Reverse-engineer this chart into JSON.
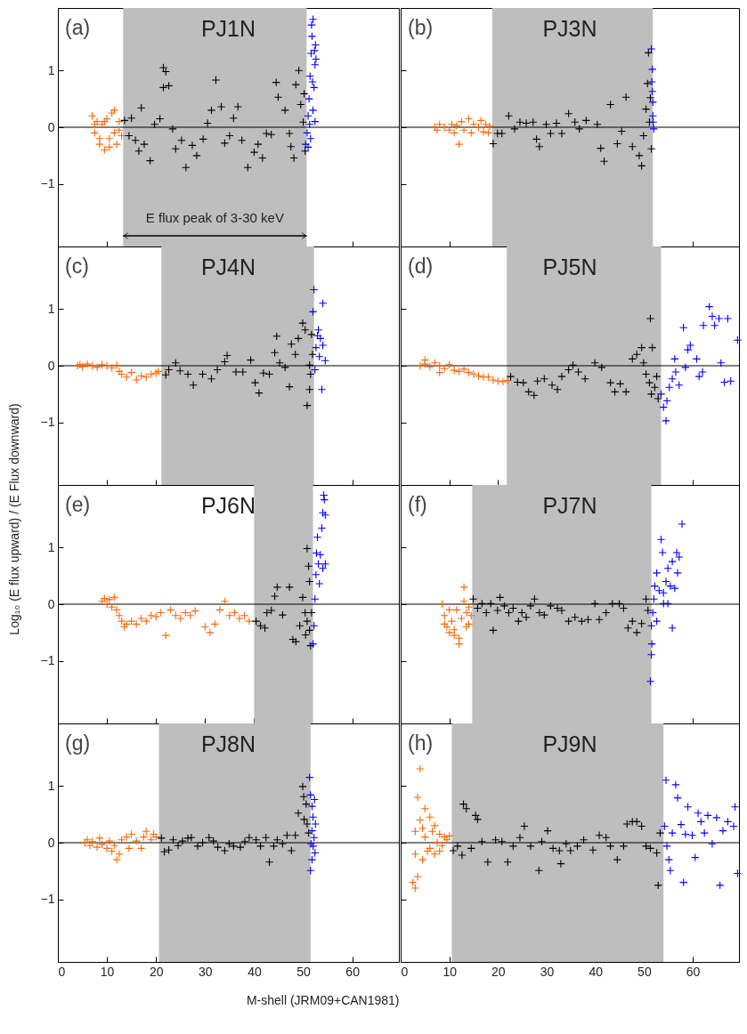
{
  "chart_data": [
    {
      "type": "scatter",
      "title": "PJ1N",
      "annotations": [
        "(a)",
        "E flux peak of 3-30 keV"
      ],
      "xlim": [
        0,
        69.5
      ],
      "ylim": [
        -2.1,
        2.1
      ],
      "xticks": [
        0,
        10,
        20,
        30,
        40,
        50,
        60
      ],
      "yticks": [
        -1,
        0,
        1
      ],
      "tick_labels": "y",
      "marker": "cross",
      "bands": [
        {
          "axis": "x",
          "from": 13.3,
          "to": 50.7,
          "color": "#bebebe"
        }
      ],
      "ref_lines": [
        {
          "axis": "y",
          "value": 0,
          "color": "#000000"
        }
      ],
      "series": [
        {
          "color": "#ff6600",
          "x": [
            7,
            7.5,
            8,
            8.5,
            9,
            9.5,
            10,
            10.5,
            11,
            11.5,
            12,
            12.5,
            13,
            7.5,
            8.5,
            9.5,
            10.5,
            11.5,
            12.5
          ],
          "values": [
            0.2,
            -0.1,
            0.1,
            -0.3,
            0.05,
            -0.4,
            0.15,
            -0.2,
            0.25,
            -0.1,
            -0.3,
            0.1,
            -0.15,
            0.05,
            -0.2,
            0.1,
            -0.35,
            0.3,
            -0.05
          ]
        },
        {
          "color": "#000000",
          "x": [
            13.6,
            14.5,
            15,
            15.8,
            16.5,
            17,
            17.6,
            18.8,
            19.7,
            20.8,
            21.5,
            22,
            21.5,
            22.6,
            23.4,
            24,
            25.2,
            26.1,
            27.4,
            28.3,
            29.6,
            30.5,
            31.3,
            32.2,
            33.3,
            34,
            35,
            35.8,
            36.7,
            37.5,
            38.7,
            40,
            40.8,
            41.7,
            42.5,
            43.5,
            44.5,
            44.9,
            46.3,
            47.2,
            47.5,
            48.1,
            48.5,
            49.1,
            49.5,
            50,
            50.4,
            50.2
          ],
          "values": [
            0.12,
            -0.15,
            0.16,
            -0.23,
            -0.42,
            0.34,
            -0.3,
            -0.59,
            0.05,
            0.15,
            1.05,
            0.98,
            0.7,
            0.73,
            -0.03,
            -0.38,
            -0.23,
            -0.71,
            -0.32,
            -0.5,
            -0.21,
            0.07,
            0.3,
            0.83,
            0.36,
            -0.28,
            -0.15,
            0.16,
            0.36,
            -0.23,
            -0.71,
            -0.44,
            -0.3,
            -0.54,
            -0.11,
            -0.13,
            0.79,
            0.53,
            0.3,
            -0.11,
            -0.34,
            -0.54,
            0.75,
            1,
            0.4,
            0.09,
            -0.42,
            0.59
          ]
        },
        {
          "color": "#0000ff",
          "x": [
            50.5,
            50.8,
            51,
            51.2,
            51.4,
            51.6,
            51.8,
            52,
            51.5,
            52,
            52.2,
            52.4,
            52.5,
            52.6,
            51.3,
            51.9,
            52.3,
            51,
            52.4,
            51.7
          ],
          "values": [
            -0.3,
            -0.1,
            0.2,
            0.5,
            0.9,
            1.3,
            1.6,
            1.9,
            -0.2,
            0.3,
            0.7,
            1.1,
            1.45,
            1.2,
            0.05,
            0.8,
            1.35,
            -0.35,
            0.1,
            1.8
          ]
        }
      ]
    },
    {
      "type": "scatter",
      "title": "PJ3N",
      "annotations": [
        "(b)"
      ],
      "xlim": [
        0,
        69.5
      ],
      "ylim": [
        -2.1,
        2.1
      ],
      "xticks": [
        0,
        10,
        20,
        30,
        40,
        50,
        60
      ],
      "yticks": [
        -1,
        0,
        1
      ],
      "tick_labels": false,
      "marker": "cross",
      "bands": [
        {
          "axis": "x",
          "from": 18.8,
          "to": 51.8,
          "color": "#bebebe"
        }
      ],
      "ref_lines": [
        {
          "axis": "y",
          "value": 0,
          "color": "#000000"
        }
      ],
      "series": [
        {
          "color": "#ff6600",
          "x": [
            7,
            7.5,
            8,
            9,
            10,
            10.5,
            11,
            11.5,
            12,
            12.5,
            13,
            14,
            14.5,
            15,
            16,
            16.5,
            17,
            17.5,
            18,
            18.3
          ],
          "values": [
            0,
            -0.05,
            0.05,
            0,
            -0.05,
            0.05,
            -0.1,
            0.03,
            -0.3,
            0.1,
            -0.05,
            0.15,
            -0.1,
            0.05,
            0,
            0.12,
            -0.08,
            0.05,
            -0.1,
            0.02
          ]
        },
        {
          "color": "#000000",
          "x": [
            19,
            19.9,
            20.8,
            22.2,
            23.4,
            24.5,
            25.8,
            27.2,
            27.9,
            28.5,
            29.9,
            30.8,
            32,
            33.1,
            34.5,
            35.8,
            36.7,
            38.1,
            40.4,
            41.1,
            41.8,
            43.1,
            44.5,
            45.4,
            46.3,
            47.6,
            49,
            49.5,
            49.9,
            50.4,
            50.7,
            50.9,
            51.1,
            51.5,
            51.3
          ],
          "values": [
            -0.29,
            -0.11,
            -0.11,
            0.2,
            -0.03,
            0.09,
            0.07,
            0.09,
            -0.21,
            -0.34,
            0.05,
            -0.11,
            0.07,
            -0.11,
            0.24,
            0.09,
            -0.03,
            0.12,
            0.05,
            -0.37,
            -0.6,
            0.4,
            -0.29,
            -0.07,
            0.53,
            -0.34,
            -0.5,
            -0.68,
            -0.15,
            0.32,
            0.77,
            1.31,
            0.09,
            -0.38,
            0.52
          ]
        },
        {
          "color": "#0000ff",
          "x": [
            51.5,
            51.7,
            51.7,
            51.8,
            51.9,
            51.6,
            51.8,
            52
          ],
          "values": [
            1.38,
            1.02,
            0.63,
            0.2,
            0.09,
            0.8,
            0.44,
            -0.03
          ]
        }
      ]
    },
    {
      "type": "scatter",
      "title": "PJ4N",
      "annotations": [
        "(c)"
      ],
      "xlim": [
        0,
        69.5
      ],
      "ylim": [
        -2.1,
        2.1
      ],
      "xticks": [
        0,
        10,
        20,
        30,
        40,
        50,
        60
      ],
      "yticks": [
        -1,
        0,
        1
      ],
      "tick_labels": "y",
      "marker": "cross",
      "bands": [
        {
          "axis": "x",
          "from": 21.1,
          "to": 52.2,
          "color": "#bebebe"
        }
      ],
      "ref_lines": [
        {
          "axis": "y",
          "value": 0,
          "color": "#000000"
        }
      ],
      "series": [
        {
          "color": "#ff6600",
          "x": [
            4,
            4.5,
            5,
            6,
            7,
            8,
            9,
            10,
            11,
            12,
            12.5,
            13,
            14,
            15,
            16,
            17,
            18,
            19,
            20,
            20.5
          ],
          "values": [
            0,
            0.02,
            -0.02,
            0.03,
            0,
            -0.03,
            0.02,
            0,
            -0.04,
            0.01,
            -0.1,
            -0.15,
            -0.2,
            -0.12,
            -0.25,
            -0.18,
            -0.2,
            -0.15,
            -0.13,
            -0.1
          ]
        },
        {
          "color": "#000000",
          "x": [
            22,
            22.6,
            24,
            24.9,
            26.5,
            27.6,
            29.5,
            31.3,
            32.5,
            34,
            34.5,
            36.3,
            37.7,
            39.3,
            40.2,
            41,
            41.9,
            43.1,
            44.2,
            44.6,
            45.2,
            46.3,
            47.2,
            47.6,
            48.4,
            49,
            49.9,
            50.4,
            50.8,
            51.3,
            51.5,
            51.7,
            51.9,
            51.3
          ],
          "values": [
            -0.16,
            -0.07,
            0.05,
            -0.09,
            -0.15,
            -0.34,
            -0.15,
            -0.23,
            -0.07,
            0.07,
            0.18,
            -0.11,
            -0.11,
            0.1,
            -0.3,
            -0.48,
            -0.13,
            -0.15,
            0.23,
            0.52,
            0.05,
            -0.03,
            -0.37,
            0.38,
            0.2,
            0.48,
            0.75,
            0.63,
            -0.7,
            -0.42,
            -0.15,
            0.55,
            0.2,
            0.01
          ]
        },
        {
          "color": "#0000ff",
          "x": [
            52.2,
            52,
            54,
            53.1,
            53.5,
            52.6,
            54,
            54.5,
            53.3,
            53.8,
            52.4,
            52.9
          ],
          "values": [
            1.34,
            0.95,
            1.1,
            0.63,
            0.48,
            0.32,
            0.36,
            0.09,
            0.16,
            -0.42,
            -0.07,
            0.53
          ]
        }
      ]
    },
    {
      "type": "scatter",
      "title": "PJ5N",
      "annotations": [
        "(d)"
      ],
      "xlim": [
        0,
        69.5
      ],
      "ylim": [
        -2.1,
        2.1
      ],
      "xticks": [
        0,
        10,
        20,
        30,
        40,
        50,
        60
      ],
      "yticks": [
        -1,
        0,
        1
      ],
      "tick_labels": false,
      "marker": "cross",
      "bands": [
        {
          "axis": "x",
          "from": 21.8,
          "to": 53.5,
          "color": "#bebebe"
        }
      ],
      "ref_lines": [
        {
          "axis": "y",
          "value": 0,
          "color": "#000000"
        }
      ],
      "series": [
        {
          "color": "#ff6600",
          "x": [
            4,
            5,
            6,
            7,
            8,
            9,
            10,
            11,
            12,
            13,
            14,
            15,
            16,
            17,
            18,
            19,
            20,
            21,
            22,
            5,
            8
          ],
          "values": [
            0,
            0.03,
            -0.02,
            0.05,
            0,
            -0.05,
            0.02,
            -0.08,
            -0.1,
            -0.06,
            -0.12,
            -0.15,
            -0.18,
            -0.2,
            -0.2,
            -0.25,
            -0.27,
            -0.28,
            -0.26,
            0.1,
            -0.12
          ]
        },
        {
          "color": "#000000",
          "x": [
            22.6,
            24,
            25.2,
            26.3,
            27.4,
            28.1,
            29.5,
            31.1,
            32.2,
            33.1,
            34.5,
            35.4,
            36.5,
            37.9,
            39.9,
            41.3,
            43.1,
            44,
            45.1,
            46.3,
            47.6,
            48.5,
            49.5,
            49.9,
            50.4,
            51.3,
            51.1,
            51.7,
            51.5,
            52.2,
            52.6,
            52.9
          ],
          "values": [
            -0.19,
            -0.29,
            -0.3,
            -0.46,
            -0.52,
            -0.27,
            -0.23,
            -0.34,
            -0.42,
            -0.19,
            -0.07,
            0.01,
            -0.11,
            -0.23,
            0.05,
            -0.03,
            -0.3,
            -0.46,
            -0.32,
            -0.46,
            0.12,
            0.2,
            0.32,
            0.05,
            -0.15,
            0.83,
            -0.3,
            0.32,
            -0.5,
            -0.38,
            -0.19,
            -0.58
          ]
        },
        {
          "color": "#0000ff",
          "x": [
            53.5,
            54,
            54.5,
            54.7,
            55.2,
            55.8,
            56.3,
            56.5,
            57.2,
            58.1,
            58.5,
            59,
            59.5,
            60.8,
            61.3,
            62,
            62.2,
            63.4,
            64,
            64.5,
            65.4,
            65.8,
            66.5,
            67.2,
            67.8,
            69.2
          ],
          "values": [
            -0.5,
            -0.73,
            -0.97,
            -0.62,
            -0.38,
            -0.23,
            0.12,
            -0.11,
            -0.34,
            0.67,
            -0.03,
            0.28,
            0.36,
            0.12,
            -0.19,
            -0.11,
            0.71,
            1.04,
            0.87,
            0.71,
            0.83,
            0.05,
            -0.29,
            0.83,
            -0.27,
            0.45
          ]
        }
      ]
    },
    {
      "type": "scatter",
      "title": "PJ6N",
      "ylabel": "Log₁₀ (E flux upward) / (E Flux downward)",
      "annotations": [
        "(e)"
      ],
      "xlim": [
        0,
        69.5
      ],
      "ylim": [
        -2.1,
        2.1
      ],
      "xticks": [
        0,
        10,
        20,
        30,
        40,
        50,
        60
      ],
      "yticks": [
        -1,
        0,
        1
      ],
      "tick_labels": "y",
      "marker": "cross",
      "bands": [
        {
          "axis": "x",
          "from": 40,
          "to": 52,
          "color": "#bebebe"
        }
      ],
      "ref_lines": [
        {
          "axis": "y",
          "value": 0,
          "color": "#000000"
        }
      ],
      "series": [
        {
          "color": "#ff6600",
          "x": [
            9,
            9.5,
            10,
            10.5,
            11,
            11.5,
            12,
            12.5,
            13,
            13.5,
            14,
            15,
            16,
            17,
            18,
            19,
            20,
            21,
            22,
            23,
            24,
            25,
            26,
            27,
            28,
            30,
            31,
            32,
            33,
            34,
            35,
            36,
            37,
            38,
            39
          ],
          "values": [
            0.05,
            0.1,
            0,
            0.08,
            -0.05,
            0.12,
            -0.1,
            -0.2,
            -0.3,
            -0.4,
            -0.35,
            -0.3,
            -0.35,
            -0.25,
            -0.3,
            -0.2,
            -0.22,
            -0.15,
            -0.55,
            -0.1,
            -0.2,
            -0.25,
            -0.15,
            -0.2,
            -0.12,
            -0.4,
            -0.5,
            -0.35,
            -0.1,
            0.05,
            -0.2,
            -0.15,
            -0.25,
            -0.2,
            -0.3
          ]
        },
        {
          "color": "#000000",
          "x": [
            40.4,
            41.3,
            42.2,
            42.6,
            43.5,
            44.2,
            44.7,
            45.8,
            47.2,
            47.9,
            48.5,
            49.3,
            49.9,
            50.4,
            50.8,
            51.1,
            51.3,
            51.5,
            51.7,
            50.8,
            50.5,
            51.3
          ],
          "values": [
            -0.3,
            -0.38,
            -0.42,
            -0.15,
            -0.11,
            0.14,
            0.3,
            -0.19,
            0.3,
            -0.62,
            -0.66,
            -0.38,
            0.12,
            -0.15,
            0.98,
            0.67,
            -0.46,
            -0.73,
            -0.15,
            -0.3,
            -0.54,
            0.4
          ]
        },
        {
          "color": "#0000ff",
          "x": [
            52,
            52.2,
            52.4,
            52.6,
            52.7,
            52.9,
            53.1,
            53.5,
            53.3,
            53.8,
            54,
            54.2,
            54.5,
            54,
            54.5,
            54.3
          ],
          "values": [
            -0.7,
            -0.38,
            0.09,
            0.52,
            0.9,
            1.18,
            0.71,
            0.87,
            0.36,
            1.34,
            1.61,
            1.92,
            1.57,
            0.63,
            0.71,
            1.84
          ]
        }
      ]
    },
    {
      "type": "scatter",
      "title": "PJ7N",
      "annotations": [
        "(f)"
      ],
      "xlim": [
        0,
        69.5
      ],
      "ylim": [
        -2.1,
        2.1
      ],
      "xticks": [
        0,
        10,
        20,
        30,
        40,
        50,
        60
      ],
      "yticks": [
        -1,
        0,
        1
      ],
      "tick_labels": false,
      "marker": "cross",
      "bands": [
        {
          "axis": "x",
          "from": 14.7,
          "to": 51.5,
          "color": "#bebebe"
        }
      ],
      "ref_lines": [
        {
          "axis": "y",
          "value": 0,
          "color": "#000000"
        }
      ],
      "series": [
        {
          "color": "#ff6600",
          "x": [
            8.5,
            9,
            9.5,
            10,
            10.5,
            11,
            11.5,
            12,
            12.5,
            13,
            13.5,
            14,
            14.5,
            9,
            10,
            11,
            12,
            13,
            13.5,
            14
          ],
          "values": [
            0,
            -0.2,
            -0.4,
            -0.5,
            -0.3,
            -0.55,
            -0.1,
            -0.6,
            -0.25,
            0.3,
            -0.4,
            -0.05,
            -0.2,
            -0.35,
            -0.1,
            -0.45,
            -0.7,
            0.05,
            -0.15,
            -0.35
          ]
        },
        {
          "color": "#000000",
          "x": [
            14.9,
            15.8,
            16.7,
            17.6,
            18.5,
            19,
            19.9,
            20.4,
            21.3,
            22.2,
            23.1,
            24.2,
            24.9,
            25.8,
            26.7,
            27.5,
            28.5,
            29.5,
            30.8,
            32.2,
            33.1,
            34.5,
            35.8,
            37.2,
            38.5,
            39.9,
            40.8,
            42.2,
            43.5,
            44.9,
            45.8,
            46.7,
            47.6,
            48.5,
            49.5,
            50.4,
            50.8
          ],
          "values": [
            0.09,
            -0.07,
            0.01,
            -0.15,
            0.01,
            -0.46,
            -0.11,
            0.12,
            -0.03,
            -0.15,
            -0.07,
            -0.3,
            -0.15,
            -0.23,
            -0.03,
            0.09,
            -0.15,
            -0.19,
            -0.03,
            -0.07,
            -0.11,
            -0.3,
            -0.23,
            -0.3,
            -0.27,
            0.01,
            -0.27,
            -0.15,
            0.01,
            0.01,
            -0.07,
            -0.42,
            -0.3,
            -0.5,
            -0.34,
            0.09,
            -0.11
          ]
        },
        {
          "color": "#0000ff",
          "x": [
            51.3,
            51.5,
            51.6,
            51.5,
            51.8,
            52,
            52.2,
            52.6,
            53.1,
            53.5,
            53.8,
            54,
            54.5,
            54.9,
            55.4,
            55.8,
            56.3,
            56.9,
            55.8,
            56.7,
            57.2,
            57.8,
            54.9,
            52.6,
            54
          ],
          "values": [
            -1.36,
            -0.89,
            -0.7,
            -0.38,
            -0.15,
            0.09,
            0.32,
            0.55,
            0.24,
            1.14,
            0.91,
            0.01,
            0.4,
            0.63,
            0.32,
            0.75,
            0.28,
            0.55,
            -0.42,
            0.91,
            0.83,
            1.41,
            0.01,
            -0.3,
            0.2
          ]
        }
      ]
    },
    {
      "type": "scatter",
      "title": "PJ8N",
      "xlabel": "M-shell (JRM09+CAN1981)",
      "annotations": [
        "(g)"
      ],
      "xlim": [
        0,
        69.5
      ],
      "ylim": [
        -2.1,
        2.1
      ],
      "xticks": [
        0,
        10,
        20,
        30,
        40,
        50,
        60
      ],
      "yticks": [
        -1,
        0,
        1
      ],
      "marker": "cross",
      "bands": [
        {
          "axis": "x",
          "from": 20.6,
          "to": 51.5,
          "color": "#bebebe"
        }
      ],
      "ref_lines": [
        {
          "axis": "y",
          "value": 0,
          "color": "#000000"
        }
      ],
      "series": [
        {
          "color": "#ff6600",
          "x": [
            5.5,
            6,
            6.5,
            7,
            8,
            8.5,
            9,
            10,
            10.5,
            11,
            11.5,
            12,
            12.5,
            13,
            14,
            14.5,
            15,
            16,
            17,
            17.5,
            18,
            19,
            19.5,
            20
          ],
          "values": [
            0,
            0.05,
            -0.05,
            0.02,
            -0.08,
            0.08,
            -0.03,
            -0.1,
            0.03,
            -0.15,
            -0.05,
            -0.3,
            -0.2,
            0.05,
            0.1,
            -0.1,
            0.15,
            0.03,
            -0.1,
            0.1,
            0.2,
            0.05,
            0.15,
            0.1
          ]
        },
        {
          "color": "#000000",
          "x": [
            21.1,
            21.7,
            22.6,
            23.5,
            24.5,
            25.4,
            26.5,
            27.2,
            28.5,
            29.5,
            30.8,
            31.7,
            32.6,
            34,
            34.9,
            35.8,
            37.2,
            38.1,
            39,
            40.4,
            41.3,
            42.4,
            43.1,
            44,
            44.7,
            45.8,
            46.7,
            47.6,
            48.4,
            49,
            49.9,
            50.1,
            50.6,
            50.2,
            50.8,
            51.1
          ],
          "values": [
            0.08,
            -0.16,
            -0.13,
            0.05,
            -0.05,
            0.03,
            0.08,
            0.09,
            -0.06,
            0,
            0.09,
            0.03,
            -0.08,
            -0.14,
            -0.02,
            -0.06,
            -0.08,
            0.02,
            0.09,
            0.05,
            -0.06,
            0.09,
            -0.34,
            -0.06,
            0.05,
            -0.02,
            0.13,
            -0.14,
            0.13,
            0.52,
            0.99,
            0.81,
            0.68,
            0.41,
            0.33,
            0.17
          ]
        },
        {
          "color": "#0000ff",
          "x": [
            51.3,
            51.5,
            51.8,
            52,
            51.8,
            52.2,
            52,
            52.4,
            51.5,
            51.8,
            52.5,
            51.6,
            52.3
          ],
          "values": [
            1.15,
            0.84,
            0.64,
            0.45,
            0.21,
            0.09,
            -0.06,
            -0.18,
            -0.49,
            -0.3,
            0.33,
            -0.02,
            0.76
          ]
        }
      ]
    },
    {
      "type": "scatter",
      "title": "PJ9N",
      "annotations": [
        "(h)"
      ],
      "xlim": [
        0,
        69.5
      ],
      "ylim": [
        -2.1,
        2.1
      ],
      "xticks": [
        0,
        10,
        20,
        30,
        40,
        50,
        60
      ],
      "yticks": [
        -1,
        0,
        1
      ],
      "tick_labels": "x",
      "marker": "cross",
      "bands": [
        {
          "axis": "x",
          "from": 10.5,
          "to": 54,
          "color": "#bebebe"
        }
      ],
      "ref_lines": [
        {
          "axis": "y",
          "value": 0,
          "color": "#000000"
        }
      ],
      "series": [
        {
          "color": "#ff6600",
          "x": [
            2.5,
            3,
            3.5,
            3.5,
            4,
            4,
            4.5,
            5,
            5,
            5.5,
            6,
            6.5,
            6,
            7,
            7.5,
            8,
            8.5,
            9,
            9.5,
            10,
            3,
            3,
            4.5,
            7,
            8
          ],
          "values": [
            -0.7,
            -0.8,
            0.8,
            -0.6,
            1.3,
            0.4,
            -0.3,
            0.6,
            0.1,
            -0.15,
            0.45,
            0.2,
            -0.1,
            0.3,
            0,
            0.15,
            -0.05,
            0.1,
            0.05,
            0.12,
            0.2,
            -0.2,
            0.25,
            -0.2,
            -0.15
          ]
        },
        {
          "color": "#000000",
          "x": [
            10.8,
            11.7,
            12.6,
            12.9,
            13.5,
            14.5,
            15.4,
            15.8,
            16.7,
            17.9,
            19.5,
            20.8,
            22,
            23.1,
            24.5,
            25.4,
            26.7,
            28.4,
            29,
            30.2,
            31.3,
            32.6,
            32.9,
            34,
            34.9,
            36.3,
            37.6,
            39.5,
            40.8,
            42.2,
            43.1,
            44.5,
            45.8,
            46.5,
            47.6,
            48.5,
            49.5,
            50.4,
            51.3,
            52.6,
            52.9,
            53.3
          ],
          "values": [
            -0.14,
            -0.06,
            -0.22,
            0.68,
            0.6,
            -0.1,
            0.48,
            0.41,
            0.02,
            -0.34,
            0.05,
            0.02,
            -0.34,
            -0.06,
            0.09,
            0.29,
            -0.06,
            -0.49,
            0.02,
            0.21,
            -0.1,
            -0.14,
            -0.37,
            -0.02,
            -0.14,
            -0.06,
            0.05,
            -0.13,
            0.13,
            0.09,
            -0.06,
            -0.3,
            -0.06,
            0.33,
            0.37,
            0.37,
            0.29,
            -0.06,
            -0.1,
            -0.18,
            -0.75,
            0.17
          ]
        },
        {
          "color": "#0000ff",
          "x": [
            54.2,
            54.5,
            54.7,
            55.1,
            55.4,
            55.8,
            56.5,
            56.9,
            57.6,
            58.1,
            58.5,
            59,
            59.9,
            60.5,
            61.1,
            61.7,
            62.4,
            63.1,
            64,
            64.9,
            65.6,
            66.2,
            67.2,
            68.4,
            68.7,
            69.2
          ],
          "values": [
            0.29,
            1.1,
            -0.06,
            -0.3,
            -0.49,
            0.17,
            1.02,
            0.79,
            0.32,
            -0.7,
            0.15,
            0.63,
            0.13,
            -0.26,
            0.52,
            0.37,
            0.17,
            0.48,
            -0.02,
            0.44,
            -0.75,
            0.21,
            0.37,
            0.29,
            0.63,
            -0.54
          ]
        }
      ]
    }
  ]
}
